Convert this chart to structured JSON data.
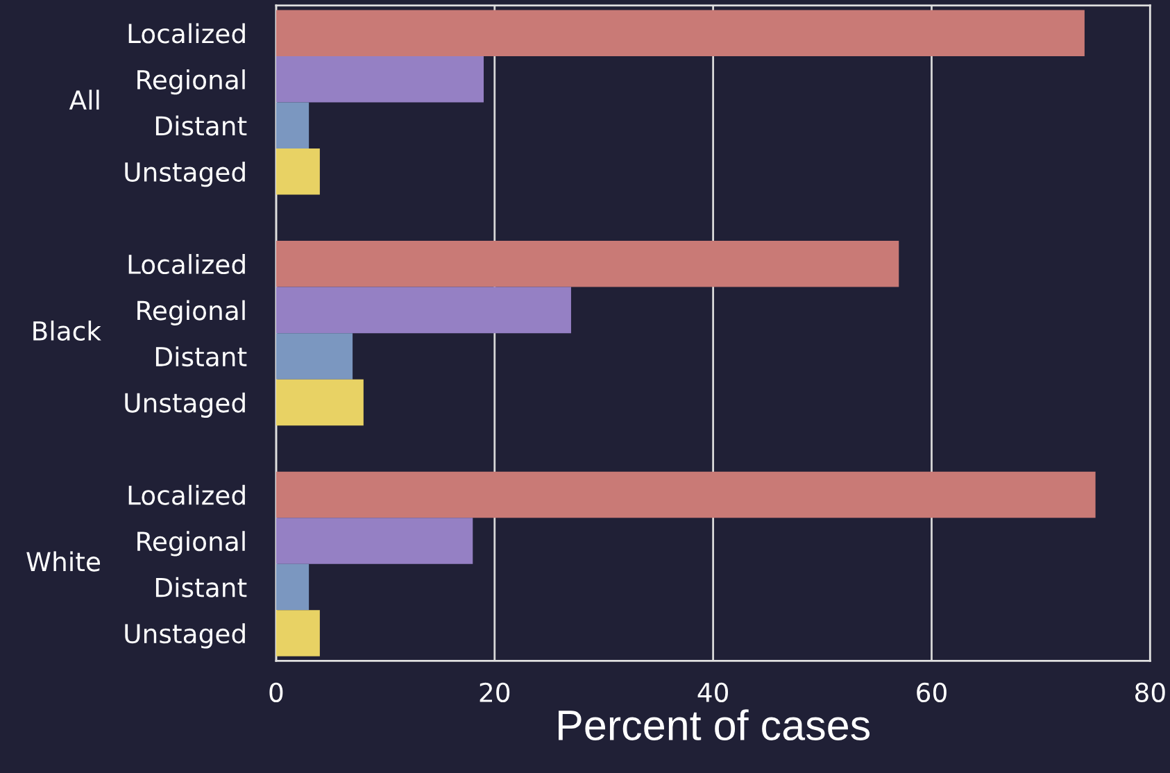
{
  "chart_data": {
    "type": "bar",
    "orientation": "horizontal",
    "xlabel": "Percent of cases",
    "categories": [
      "Localized",
      "Regional",
      "Distant",
      "Unstaged",
      "Localized",
      "Regional",
      "Distant",
      "Unstaged",
      "Localized",
      "Regional",
      "Distant",
      "Unstaged"
    ],
    "values": [
      74,
      19,
      3,
      4,
      57,
      27,
      7,
      8,
      75,
      18,
      3,
      4
    ],
    "colors": [
      "#c97a76",
      "#9580c4",
      "#7b97c0",
      "#e8d264",
      "#c97a76",
      "#9580c4",
      "#7b97c0",
      "#e8d264",
      "#c97a76",
      "#9580c4",
      "#7b97c0",
      "#e8d264"
    ],
    "annotations": [
      "All",
      "Black",
      "White"
    ],
    "xlim": [
      0,
      80
    ],
    "xticks": [
      0,
      20,
      40,
      60,
      80
    ],
    "grid": "x",
    "legend": false
  }
}
